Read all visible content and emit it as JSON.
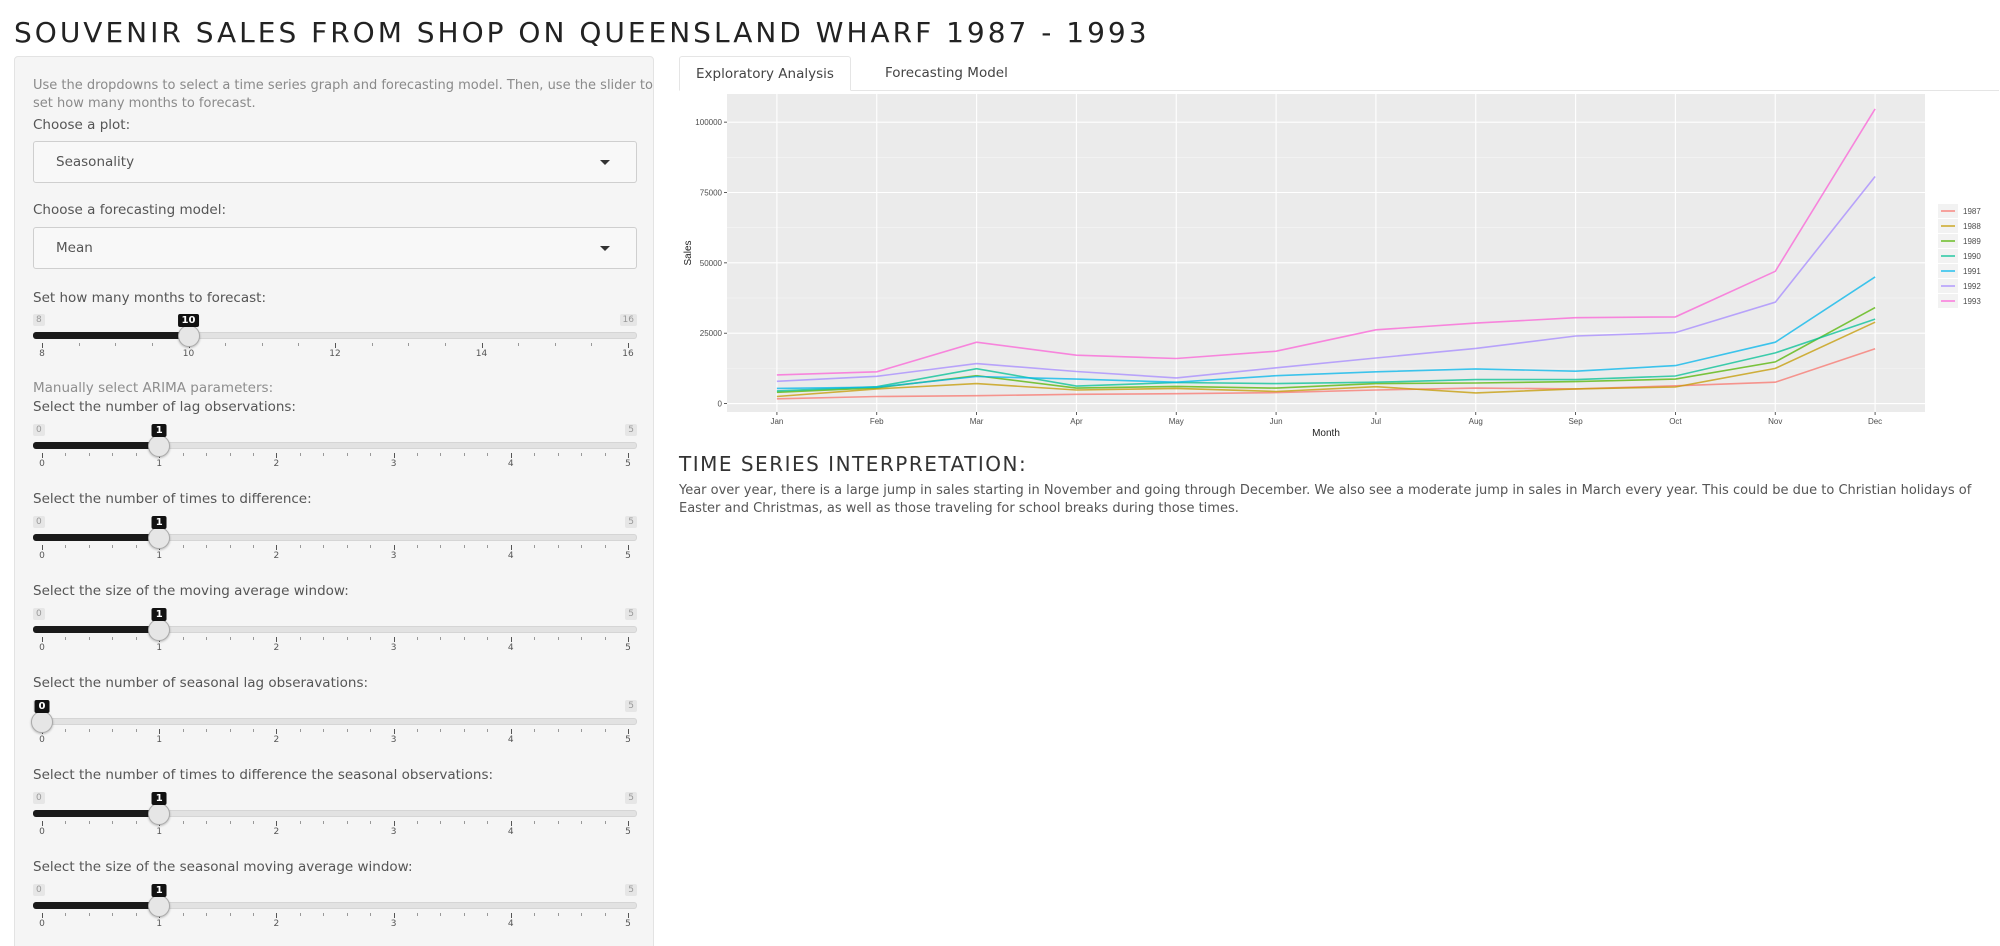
{
  "page": {
    "title": "SOUVENIR SALES FROM SHOP ON QUEENSLAND WHARF 1987 - 1993"
  },
  "sidebar": {
    "help_text": "Use the dropdowns to select a time series graph and forecasting model. Then, use the slider to set how many months to forecast.",
    "plot_select": {
      "label": "Choose a plot:",
      "value": "Seasonality"
    },
    "model_select": {
      "label": "Choose a forecasting model:",
      "value": "Mean"
    },
    "forecast_slider": {
      "label": "Set how many months to forecast:",
      "min": 8,
      "max": 16,
      "value": 10,
      "min_label": "8",
      "max_label": "16",
      "value_label": "10",
      "tick_labels": [
        "8",
        "10",
        "12",
        "14",
        "16"
      ]
    },
    "arima_heading": "Manually select ARIMA parameters:",
    "arima_sliders": [
      {
        "label": "Select the number of lag observations:",
        "min": 0,
        "max": 5,
        "value": 1,
        "min_label": "0",
        "max_label": "5",
        "value_label": "1"
      },
      {
        "label": "Select the number of times to difference:",
        "min": 0,
        "max": 5,
        "value": 1,
        "min_label": "0",
        "max_label": "5",
        "value_label": "1"
      },
      {
        "label": "Select the size of the moving average window:",
        "min": 0,
        "max": 5,
        "value": 1,
        "min_label": "0",
        "max_label": "5",
        "value_label": "1"
      },
      {
        "label": "Select the number of seasonal lag obseravations:",
        "min": 0,
        "max": 5,
        "value": 0,
        "min_label": "0",
        "max_label": "5",
        "value_label": "0"
      },
      {
        "label": "Select the number of times to difference the seasonal observations:",
        "min": 0,
        "max": 5,
        "value": 1,
        "min_label": "0",
        "max_label": "5",
        "value_label": "1"
      },
      {
        "label": "Select the size of the seasonal moving average window:",
        "min": 0,
        "max": 5,
        "value": 1,
        "min_label": "0",
        "max_label": "5",
        "value_label": "1"
      }
    ],
    "arima_tick_labels": [
      "0",
      "1",
      "2",
      "3",
      "4",
      "5"
    ]
  },
  "tabs": [
    {
      "label": "Exploratory Analysis",
      "active": true
    },
    {
      "label": "Forecasting Model",
      "active": false
    }
  ],
  "interpretation": {
    "heading": "TIME SERIES INTERPRETATION:",
    "text": "Year over year, there is a large jump in sales starting in November and going through December. We also see a moderate jump in sales in March every year. This could be due to Christian holidays of Easter and Christmas, as well as those traveling for school breaks during those times."
  },
  "chart_data": {
    "type": "line",
    "title": "",
    "xlabel": "Month",
    "ylabel": "Sales",
    "categories": [
      "Jan",
      "Feb",
      "Mar",
      "Apr",
      "May",
      "Jun",
      "Jul",
      "Aug",
      "Sep",
      "Oct",
      "Nov",
      "Dec"
    ],
    "ylim": [
      -3000,
      110000
    ],
    "yticks": [
      0,
      25000,
      50000,
      75000,
      100000
    ],
    "ytick_labels": [
      "0",
      "25000",
      "50000",
      "75000",
      "100000"
    ],
    "grid": true,
    "legend_position": "right",
    "background": "#ebebeb",
    "series": [
      {
        "name": "1987",
        "color": "#F8766D",
        "values": [
          1700,
          2500,
          2800,
          3300,
          3500,
          3900,
          4800,
          5500,
          5200,
          6300,
          7600,
          19500
        ]
      },
      {
        "name": "1988",
        "color": "#C49A00",
        "values": [
          2500,
          5200,
          7100,
          4800,
          5400,
          4300,
          6000,
          3800,
          5200,
          5900,
          12500,
          28900
        ]
      },
      {
        "name": "1989",
        "color": "#53B400",
        "values": [
          4000,
          5600,
          9900,
          5500,
          6100,
          5500,
          7100,
          7300,
          7800,
          8700,
          14800,
          34100
        ]
      },
      {
        "name": "1990",
        "color": "#00C094",
        "values": [
          4500,
          6000,
          12400,
          6200,
          7500,
          7100,
          7600,
          8500,
          8500,
          9800,
          18000,
          30000
        ]
      },
      {
        "name": "1991",
        "color": "#00B6EB",
        "values": [
          5400,
          5800,
          9600,
          8700,
          7600,
          9900,
          11300,
          12300,
          11500,
          13500,
          21800,
          45000
        ]
      },
      {
        "name": "1992",
        "color": "#A58AFF",
        "values": [
          7900,
          9700,
          14200,
          11400,
          9100,
          12700,
          16200,
          19600,
          24000,
          25200,
          36000,
          80700
        ]
      },
      {
        "name": "1993",
        "color": "#FB61D7",
        "values": [
          10200,
          11300,
          21800,
          17200,
          16000,
          18600,
          26200,
          28600,
          30500,
          30800,
          47000,
          104700
        ]
      }
    ]
  }
}
